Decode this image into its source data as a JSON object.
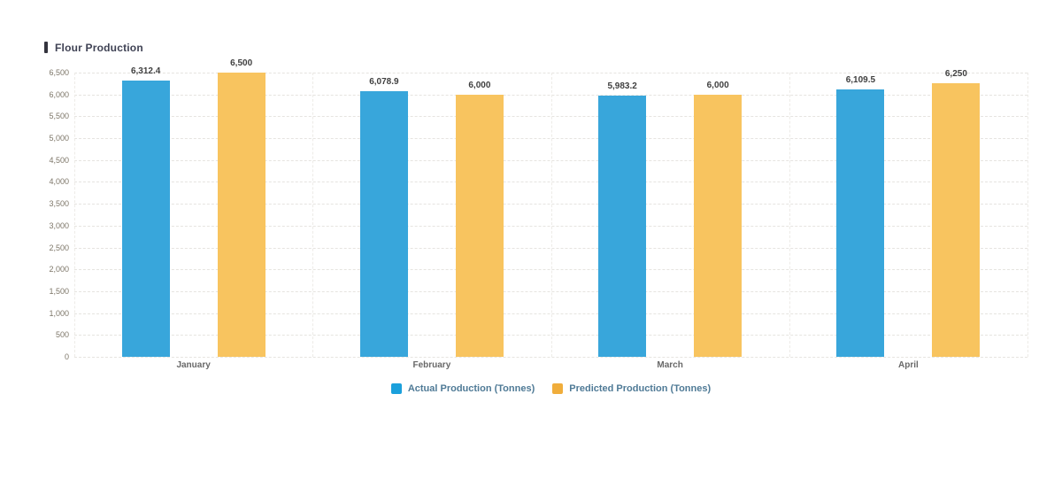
{
  "title": {
    "text": "Flour Production"
  },
  "chart_data": {
    "type": "bar",
    "title": "Flour Production",
    "categories": [
      "January",
      "February",
      "March",
      "April"
    ],
    "series": [
      {
        "name": "Actual Production (Tonnes)",
        "values": [
          6312.4,
          6078.9,
          5983.2,
          6109.5
        ],
        "value_labels": [
          "6,312.4",
          "6,078.9",
          "5,983.2",
          "6,109.5"
        ],
        "bar_color": "#38A6DB",
        "legend_color": "#1BA0DC"
      },
      {
        "name": "Predicted Production (Tonnes)",
        "values": [
          6500,
          6000,
          6000,
          6250
        ],
        "value_labels": [
          "6,500",
          "6,000",
          "6,000",
          "6,250"
        ],
        "bar_color": "#F8C45F",
        "legend_color": "#F0AD3B"
      }
    ],
    "ylim": [
      0,
      6500
    ],
    "ytick_step": 500,
    "ytick_labels": [
      "0",
      "500",
      "1,000",
      "1,500",
      "2,000",
      "2,500",
      "3,000",
      "3,500",
      "4,000",
      "4,500",
      "5,000",
      "5,500",
      "6,000",
      "6,500"
    ],
    "grid": true,
    "gridline_style": "dashed",
    "legend_position": "bottom",
    "xlabel": "",
    "ylabel": ""
  },
  "colors": {
    "background": "#ffffff",
    "title_text": "#3f4254",
    "title_accent": "#34343e",
    "gridline": "#e6e4e0",
    "y_tick_text": "#7d7668",
    "x_tick_text": "#686868",
    "value_label_text": "#3f3f3f",
    "legend_text": "#4f7a96"
  }
}
